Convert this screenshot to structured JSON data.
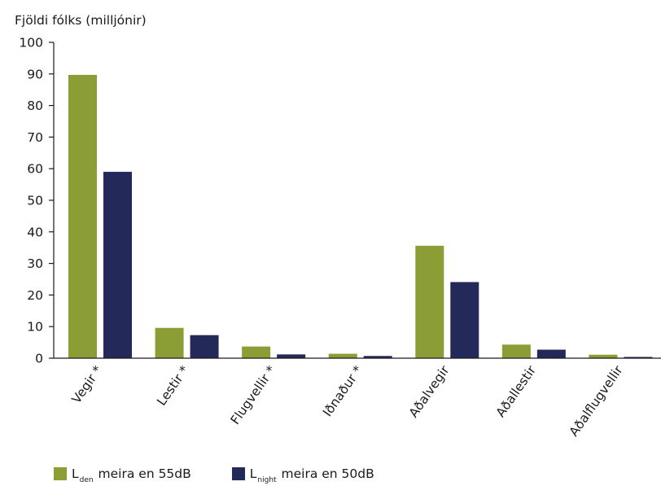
{
  "chart_data": {
    "type": "bar",
    "ylabel": "Fjöldi fólks (milljónir)",
    "ylim": [
      0,
      100
    ],
    "yticks": [
      0,
      10,
      20,
      30,
      40,
      50,
      60,
      70,
      80,
      90,
      100
    ],
    "categories": [
      "Vegir *",
      "Lestir *",
      "Flugvellir *",
      "Iðnaður *",
      "Aðalvegir",
      "Aðallestir",
      "Aðalflugvellir"
    ],
    "series": [
      {
        "name": "L den meira en 55dB",
        "color": "#8a9e35",
        "values": [
          89.7,
          9.6,
          3.7,
          1.4,
          35.6,
          4.3,
          1.1
        ]
      },
      {
        "name": "L night meira en 50dB",
        "color": "#232a59",
        "values": [
          59.0,
          7.3,
          1.2,
          0.7,
          24.1,
          2.7,
          0.4
        ]
      }
    ],
    "grid": false,
    "legend_position": "bottom-left"
  },
  "legend": {
    "item1": {
      "main": "L",
      "sub": "den",
      "rest": "meira en 55dB",
      "color": "#8a9e35"
    },
    "item2": {
      "main": "L",
      "sub": "night",
      "rest": "meira en 50dB",
      "color": "#232a59"
    }
  }
}
